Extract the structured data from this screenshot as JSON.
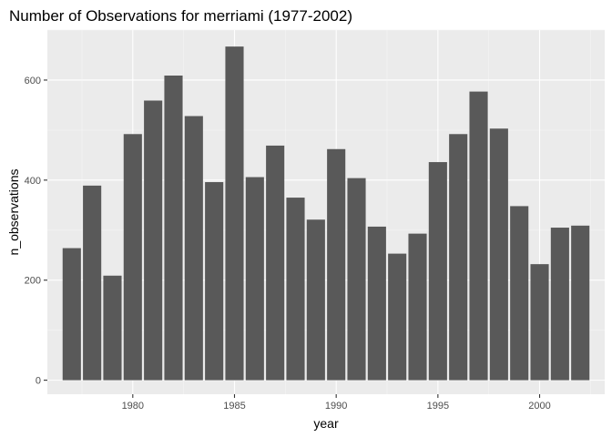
{
  "chart_data": {
    "type": "bar",
    "title": "Number of Observations for merriami (1977-2002)",
    "xlabel": "year",
    "ylabel": "n_observations",
    "x": [
      1977,
      1978,
      1979,
      1980,
      1981,
      1982,
      1983,
      1984,
      1985,
      1986,
      1987,
      1988,
      1989,
      1990,
      1991,
      1992,
      1993,
      1994,
      1995,
      1996,
      1997,
      1998,
      1999,
      2000,
      2001,
      2002
    ],
    "values": [
      264,
      389,
      209,
      492,
      559,
      609,
      528,
      396,
      667,
      406,
      469,
      365,
      321,
      462,
      404,
      307,
      253,
      293,
      436,
      492,
      577,
      503,
      348,
      232,
      305,
      309
    ],
    "xlim": [
      1975.8,
      2003.2
    ],
    "ylim": [
      -28,
      700
    ],
    "x_ticks": [
      1980,
      1985,
      1990,
      1995,
      2000
    ],
    "x_tick_labels": [
      "1980",
      "1985",
      "1990",
      "1995",
      "2000"
    ],
    "y_ticks": [
      0,
      200,
      400,
      600
    ],
    "y_tick_labels": [
      "0",
      "200",
      "400",
      "600"
    ],
    "grid": true,
    "colors": {
      "bar": "#595959",
      "panel": "#ebebeb",
      "grid_major": "#ffffff",
      "grid_minor": "#f5f5f5"
    }
  }
}
